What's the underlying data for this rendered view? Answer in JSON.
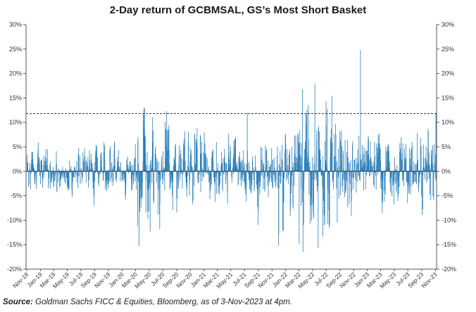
{
  "chart_data": {
    "type": "bar",
    "title": "2-Day return of GCBMSAL, GS’s Most Short Basket",
    "xlabel": "",
    "ylabel": "",
    "ylim": [
      -0.2,
      0.3
    ],
    "y_ticks": [
      "30%",
      "25%",
      "20%",
      "15%",
      "10%",
      "5%",
      "0%",
      "-5%",
      "-10%",
      "-15%",
      "-20%"
    ],
    "y_tick_values": [
      0.3,
      0.25,
      0.2,
      0.15,
      0.1,
      0.05,
      0.0,
      -0.05,
      -0.1,
      -0.15,
      -0.2
    ],
    "x_ticks": [
      "Nov-18",
      "Jan-19",
      "Mar-19",
      "May-19",
      "Jul-19",
      "Sep-19",
      "Nov-19",
      "Jan-20",
      "Mar-20",
      "May-20",
      "Jul-20",
      "Sep-20",
      "Nov-20",
      "Jan-21",
      "Mar-21",
      "May-21",
      "Jul-21",
      "Sep-21",
      "Nov-21",
      "Jan-22",
      "Mar-22",
      "May-22",
      "Jul-22",
      "Sep-22",
      "Nov-22",
      "Jan-23",
      "Mar-23",
      "May-23",
      "Jul-23",
      "Sep-23",
      "Nov-23"
    ],
    "x_range": [
      "2018-11-01",
      "2023-11-03"
    ],
    "reference_line": {
      "value": 0.118,
      "style": "dashed"
    },
    "grid": false,
    "legend": "none",
    "bar_color": "#1f77b4",
    "notable_values": [
      {
        "date": "2022-11-30",
        "value": 0.248
      },
      {
        "date": "2020-04-06",
        "value": 0.128
      },
      {
        "date": "2022-03-15",
        "value": 0.168
      },
      {
        "date": "2022-05-10",
        "value": 0.18
      },
      {
        "date": "2022-07-05",
        "value": 0.128
      },
      {
        "date": "2023-11-02",
        "value": 0.118
      },
      {
        "date": "2020-03-16",
        "value": -0.153
      },
      {
        "date": "2022-05-25",
        "value": -0.157
      },
      {
        "date": "2022-03-01",
        "value": -0.148
      },
      {
        "date": "2022-06-15",
        "value": -0.133
      },
      {
        "date": "2022-07-15",
        "value": -0.11
      },
      {
        "date": "2020-03-09",
        "value": -0.112
      }
    ]
  },
  "source": {
    "label": "Source:",
    "text": " Goldman Sachs FICC & Equities, Bloomberg, as of 3-Nov-2023 at 4pm."
  }
}
